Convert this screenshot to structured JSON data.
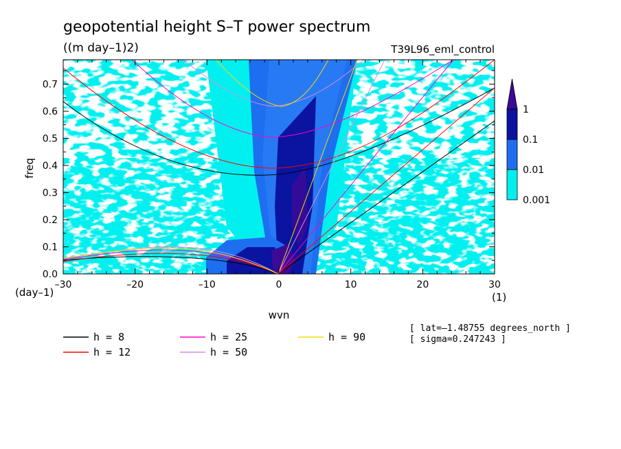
{
  "chart_data": {
    "type": "heatmap",
    "title": "geopotential height S–T power spectrum",
    "subtitle": "((m day–1)2)",
    "run_label": "T39L96_eml_control",
    "xlabel": "wvn",
    "ylabel": "freq",
    "x_unit": "(1)",
    "y_unit": "(day–1)",
    "xlim": [
      -30,
      30
    ],
    "ylim": [
      0,
      0.79
    ],
    "x_ticks": [
      -30,
      -20,
      -10,
      0,
      10,
      20,
      30
    ],
    "x_tick_labels": [
      "–30",
      "–20",
      "–10",
      "0",
      "10",
      "20",
      "30"
    ],
    "y_ticks": [
      0,
      0.1,
      0.2,
      0.3,
      0.4,
      0.5,
      0.6,
      0.7
    ],
    "y_tick_labels": [
      "0.0",
      "0.1",
      "0.2",
      "0.3",
      "0.4",
      "0.5",
      "0.6",
      "0.7"
    ],
    "colorbar": {
      "levels": [
        0.001,
        0.01,
        0.1,
        1
      ],
      "labels": [
        "0.001",
        "0.01",
        "0.1",
        "1"
      ],
      "colors": [
        "#00f0f0",
        "#1e6ef0",
        "#0a14a0",
        "#3c0a96"
      ]
    },
    "dispersion_curves": [
      {
        "h": "8",
        "color": "#000000"
      },
      {
        "h": "12",
        "color": "#ff0000"
      },
      {
        "h": "25",
        "color": "#ff00c8"
      },
      {
        "h": "50",
        "color": "#dc8cdc"
      },
      {
        "h": "90",
        "color": "#f0dc00"
      }
    ],
    "legend": {
      "items": [
        {
          "label": "h =  8",
          "color": "#000000"
        },
        {
          "label": "h = 12",
          "color": "#ff0000"
        },
        {
          "label": "h = 25",
          "color": "#ff00c8"
        },
        {
          "label": "h = 50",
          "color": "#dc8cdc"
        },
        {
          "label": "h = 90",
          "color": "#f0dc00"
        }
      ]
    },
    "annotations": [
      "[ lat=–1.48755 degrees_north ]",
      "[ sigma=0.247243 ]"
    ]
  }
}
